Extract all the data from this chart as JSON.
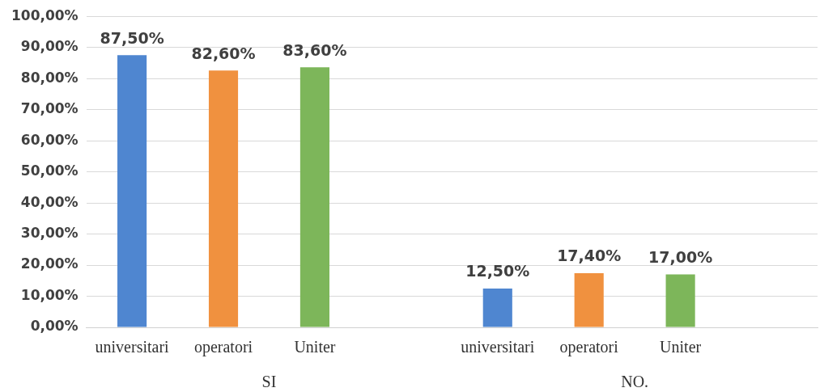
{
  "chart_data": {
    "type": "bar",
    "categories": [
      "universitari",
      "operatori",
      "Uniter",
      null,
      "universitari",
      "operatori",
      "Uniter",
      null
    ],
    "values": [
      87.5,
      82.6,
      83.6,
      null,
      12.5,
      17.4,
      17.0,
      null
    ],
    "colors": [
      "#4f86d0",
      "#f0913f",
      "#7db65a",
      null,
      "#4f86d0",
      "#f0913f",
      "#7db65a",
      null
    ],
    "value_labels": [
      "87,50%",
      "82,60%",
      "83,60%",
      null,
      "12,50%",
      "17,40%",
      "17,00%",
      null
    ],
    "ylim": [
      0,
      100
    ],
    "yticks": [
      {
        "value": 0,
        "label": "0,00%"
      },
      {
        "value": 10,
        "label": "10,00%"
      },
      {
        "value": 20,
        "label": "20,00%"
      },
      {
        "value": 30,
        "label": "30,00%"
      },
      {
        "value": 40,
        "label": "40,00%"
      },
      {
        "value": 50,
        "label": "50,00%"
      },
      {
        "value": 60,
        "label": "60,00%"
      },
      {
        "value": 70,
        "label": "70,00%"
      },
      {
        "value": 80,
        "label": "80,00%"
      },
      {
        "value": 90,
        "label": "90,00%"
      },
      {
        "value": 100,
        "label": "100,00%"
      }
    ],
    "grid": "y",
    "annotations": [
      "SI",
      "NO."
    ]
  }
}
